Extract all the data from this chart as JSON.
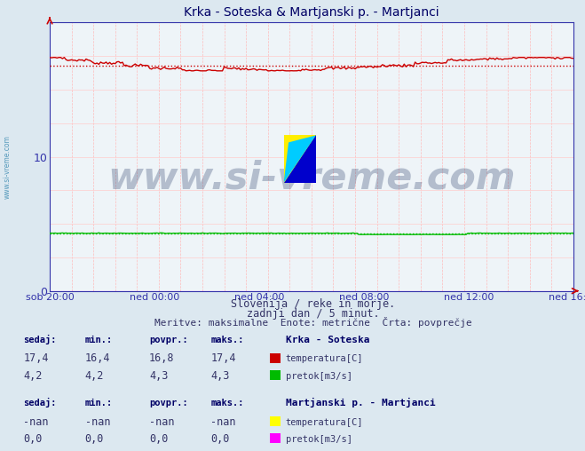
{
  "title": "Krka - Soteska & Martjanski p. - Martjanci",
  "bg_color": "#dce8f0",
  "plot_bg_color": "#eef4f8",
  "ylim": [
    0,
    20
  ],
  "yticks": [
    0,
    10
  ],
  "xlabel_ticks": [
    "sob 20:00",
    "ned 00:00",
    "ned 04:00",
    "ned 08:00",
    "ned 12:00",
    "ned 16:00"
  ],
  "subtitle1": "Slovenija / reke in morje.",
  "subtitle2": "zadnji dan / 5 minut.",
  "subtitle3": "Meritve: maksimalne  Enote: metrične  Črta: povprečje",
  "krka_temp_avg": 16.8,
  "krka_temp_min": 16.4,
  "krka_temp_max": 17.4,
  "krka_temp_sedaj": 17.4,
  "krka_pretok_avg": 4.3,
  "krka_pretok_min": 4.2,
  "krka_pretok_max": 4.3,
  "krka_pretok_sedaj": 4.2,
  "color_krka_temp": "#cc0000",
  "color_krka_pretok": "#00bb00",
  "color_martj_temp": "#ffff00",
  "color_martj_pretok": "#ff00ff",
  "color_axis": "#3333aa",
  "color_text_dark": "#000066",
  "color_text_mid": "#333366",
  "color_grid_v": "#ffbbbb",
  "color_grid_h": "#ffcccc",
  "watermark_text": "www.si-vreme.com",
  "watermark_color": "#1a3060",
  "watermark_alpha": 0.28,
  "sidebar_text": "www.si-vreme.com",
  "sidebar_color": "#5599bb",
  "arrow_color": "#cc0000",
  "n_points": 289,
  "temp_base": 16.8,
  "pretok_base": 4.25
}
